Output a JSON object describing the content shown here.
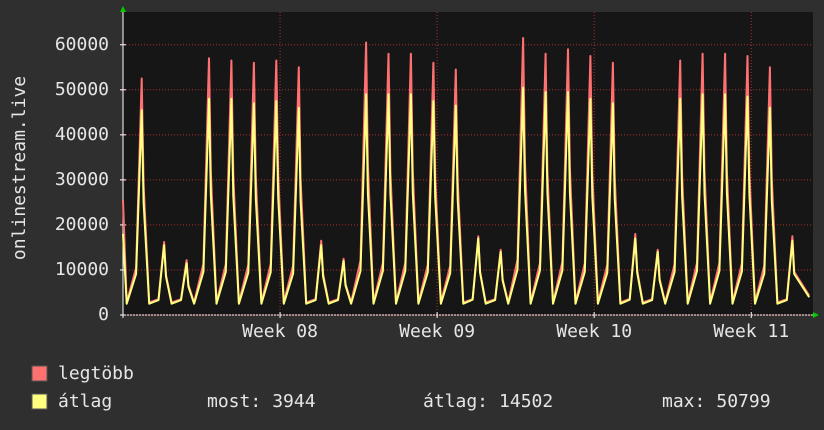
{
  "chart_data": {
    "type": "line",
    "y_label": "onlinestream.live",
    "x": [
      0,
      4,
      14,
      20,
      22,
      28,
      38,
      44,
      46,
      52,
      62,
      68,
      70,
      76,
      86,
      92,
      94,
      100,
      110,
      116,
      118,
      124,
      134,
      140,
      142,
      148,
      158,
      164,
      166,
      172,
      182,
      188,
      190,
      196,
      206,
      212,
      214,
      220,
      230,
      236,
      238,
      244,
      254,
      260,
      262,
      268,
      278,
      284,
      286,
      292,
      302,
      308,
      310,
      316,
      326,
      332,
      334,
      340,
      350,
      356,
      358,
      364,
      374,
      380,
      382,
      388,
      398,
      404,
      406,
      412,
      422,
      428,
      430,
      436,
      446,
      452,
      454,
      460,
      470,
      476,
      478,
      484,
      494,
      500,
      502,
      508,
      518,
      524,
      526,
      532,
      542,
      548,
      550,
      556,
      566,
      572,
      574,
      580,
      590,
      596,
      598,
      604,
      614,
      620,
      622,
      628,
      638,
      644,
      646,
      652,
      662,
      668,
      670,
      676,
      686,
      692,
      694,
      700,
      710,
      716,
      718,
      734
    ],
    "series": [
      {
        "name": "legtöbb",
        "color": "#ff7070",
        "values": [
          25500,
          2800,
          10500,
          52500,
          28900,
          2800,
          3500,
          16200,
          8900,
          2800,
          3500,
          12200,
          6700,
          2800,
          11400,
          57000,
          31400,
          2800,
          11300,
          56500,
          31100,
          2800,
          11200,
          56000,
          30800,
          2800,
          11300,
          56500,
          31100,
          2800,
          11000,
          55000,
          30300,
          2800,
          3500,
          16500,
          9100,
          2800,
          3500,
          12500,
          6900,
          2800,
          12100,
          60500,
          33300,
          2800,
          11600,
          58000,
          31900,
          2800,
          11600,
          58000,
          31900,
          2800,
          11200,
          56000,
          30800,
          2800,
          10900,
          54500,
          30000,
          2800,
          3500,
          17500,
          9600,
          2800,
          3500,
          14500,
          8000,
          2800,
          12300,
          61500,
          33800,
          2800,
          11600,
          58000,
          31900,
          2800,
          11800,
          59000,
          32500,
          2800,
          11500,
          57500,
          31600,
          2800,
          11200,
          56000,
          30800,
          2800,
          3600,
          18000,
          9900,
          2800,
          3500,
          14500,
          8000,
          2800,
          11300,
          56500,
          31100,
          2800,
          11600,
          58000,
          31900,
          2800,
          11600,
          58000,
          31900,
          2800,
          11500,
          57500,
          31600,
          2800,
          11000,
          55000,
          30300,
          2800,
          3500,
          17500,
          9600,
          4300
        ]
      },
      {
        "name": "átlag",
        "color": "#ffff80",
        "values": [
          18000,
          2500,
          9100,
          45500,
          25000,
          2500,
          3300,
          15500,
          8500,
          2500,
          3300,
          11500,
          6300,
          2500,
          9600,
          48000,
          26400,
          2500,
          9600,
          48000,
          26400,
          2500,
          9400,
          47000,
          25900,
          2500,
          9500,
          47500,
          26100,
          2500,
          9200,
          46000,
          25300,
          2500,
          3300,
          15500,
          8500,
          2500,
          3300,
          12000,
          6600,
          2500,
          9800,
          49000,
          27000,
          2500,
          9800,
          49000,
          27000,
          2500,
          9800,
          49000,
          27000,
          2500,
          9500,
          47500,
          26100,
          2500,
          9300,
          46500,
          25600,
          2500,
          3400,
          17000,
          9400,
          2500,
          3300,
          14000,
          7700,
          2500,
          10100,
          50500,
          27800,
          2500,
          9900,
          49500,
          27200,
          2500,
          9900,
          49500,
          27200,
          2500,
          9600,
          48000,
          26400,
          2500,
          9400,
          47000,
          25900,
          2500,
          3400,
          17000,
          9400,
          2500,
          3300,
          14000,
          7700,
          2500,
          9600,
          48000,
          26400,
          2500,
          9800,
          49000,
          27000,
          2500,
          9800,
          49000,
          27000,
          2500,
          9700,
          48500,
          26700,
          2500,
          9200,
          46000,
          25300,
          2500,
          3300,
          16500,
          9100,
          3944
        ]
      }
    ],
    "xlim": [
      0,
      737
    ],
    "xticks": [
      {
        "value": 168,
        "label": "Week 08"
      },
      {
        "value": 336,
        "label": "Week 09"
      },
      {
        "value": 504,
        "label": "Week 10"
      },
      {
        "value": 672,
        "label": "Week 11"
      }
    ],
    "ylim": [
      0,
      65500
    ],
    "yticks": [
      0,
      10000,
      20000,
      30000,
      40000,
      50000,
      60000
    ],
    "grid": true,
    "stats": [
      {
        "label": "most:",
        "value": 3944
      },
      {
        "label": "átlag:",
        "value": 14502
      },
      {
        "label": "max:",
        "value": 50799
      }
    ]
  }
}
